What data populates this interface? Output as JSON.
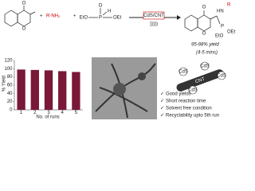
{
  "scheme": {
    "chromone_labels": [
      "O",
      "O"
    ],
    "plus": "+",
    "amine": "R-NH₂",
    "phosphite_labels": [
      "O",
      "H",
      "EtO",
      "P",
      "OEt"
    ],
    "catalyst": "CdS/CNT",
    "sonication": ")))))",
    "product_labels": [
      "O",
      "HN",
      "R",
      "O",
      "P",
      "EtO",
      "OEt"
    ],
    "yield": "95-98% yield",
    "time": "(4-5 mins)"
  },
  "chart": {
    "type": "bar",
    "ylabel": "% Yield",
    "xlabel": "No. of runs",
    "categories": [
      "1",
      "2",
      "3",
      "4",
      "5"
    ],
    "values": [
      98,
      97,
      96,
      94,
      92
    ],
    "color": "#7a1838",
    "ylim": [
      0,
      120
    ],
    "yticks": [
      0,
      20,
      40,
      60,
      80,
      100,
      120
    ]
  },
  "figure": {
    "cnt": "CNT",
    "cds": "CdS"
  },
  "bullets": [
    "Good yields",
    "Short reaction time",
    "Solvent free condition",
    "Recyclability upto 5th run"
  ],
  "check": "✓"
}
